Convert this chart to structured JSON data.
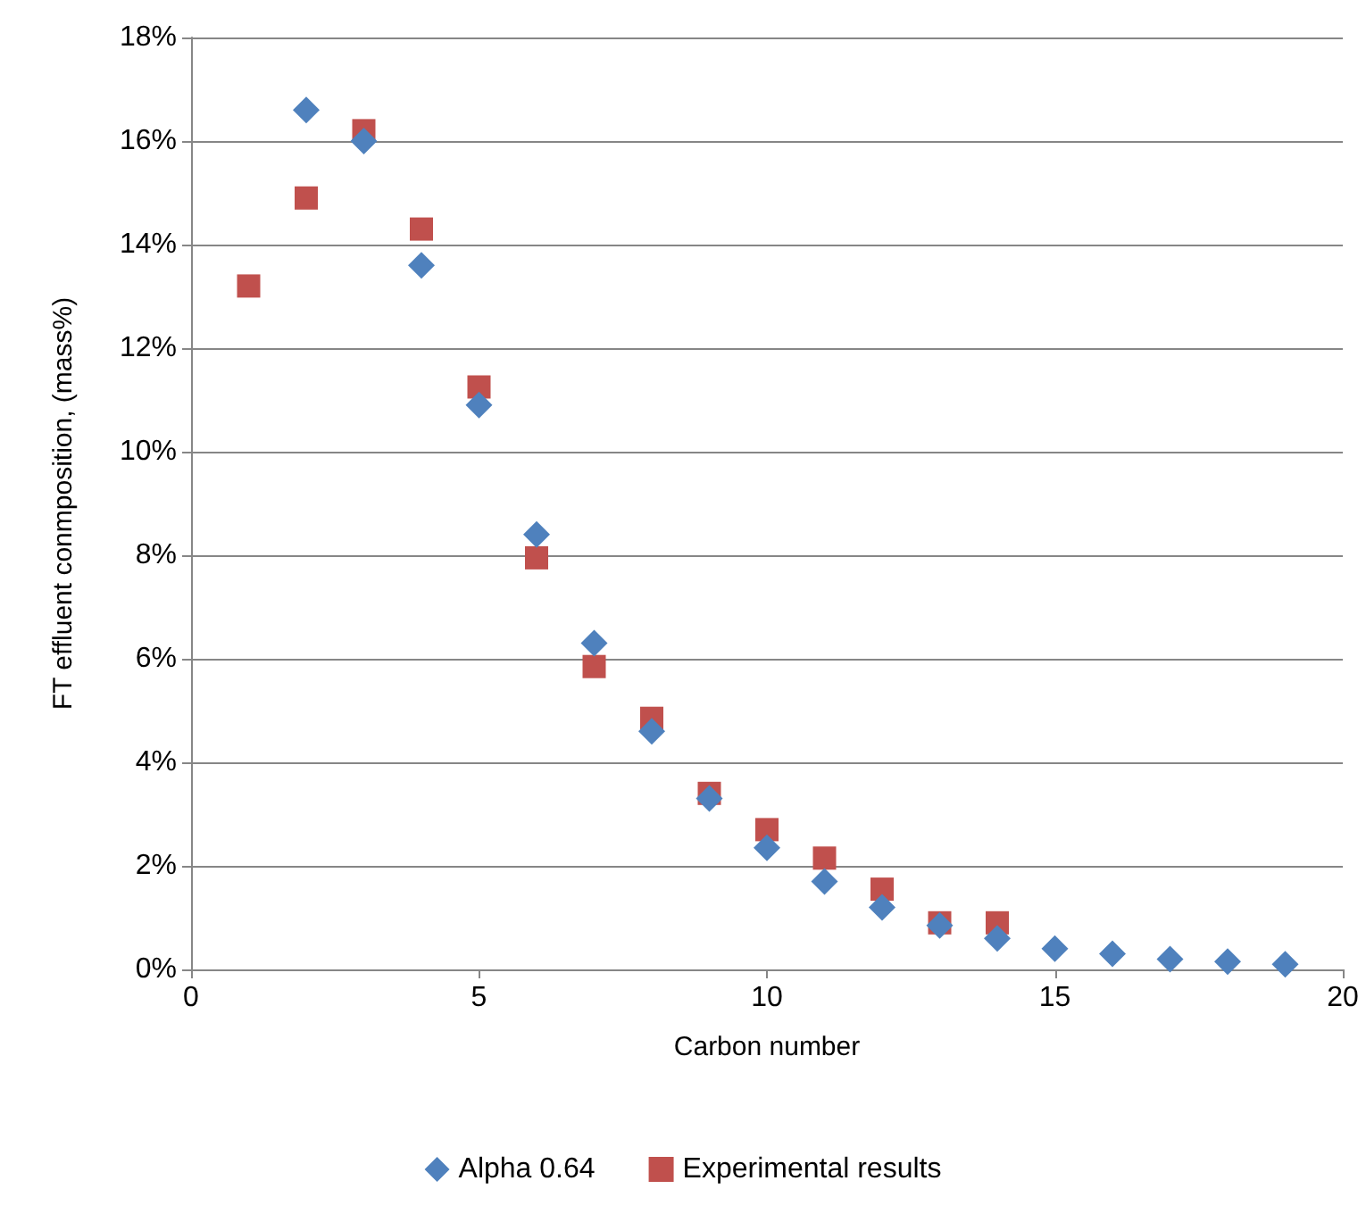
{
  "chart_data": {
    "type": "scatter",
    "xlabel": "Carbon number",
    "ylabel": "FT effluent conmposition, (mass%)",
    "xlim": [
      0,
      20
    ],
    "xticks": [
      0,
      5,
      10,
      15,
      20
    ],
    "ylim": [
      0,
      18
    ],
    "yticks": [
      {
        "value": 0,
        "label": "0%"
      },
      {
        "value": 2,
        "label": "2%"
      },
      {
        "value": 4,
        "label": "4%"
      },
      {
        "value": 6,
        "label": "6%"
      },
      {
        "value": 8,
        "label": "8%"
      },
      {
        "value": 10,
        "label": "10%"
      },
      {
        "value": 12,
        "label": "12%"
      },
      {
        "value": 14,
        "label": "14%"
      },
      {
        "value": 16,
        "label": "16%"
      },
      {
        "value": 18,
        "label": "18%"
      }
    ],
    "grid": "y",
    "legend": "bottom",
    "series": [
      {
        "name": "Alpha 0.64",
        "color": "#4f81bd",
        "marker": "diamond",
        "x": [
          2,
          3,
          4,
          5,
          6,
          7,
          8,
          9,
          10,
          11,
          12,
          13,
          14,
          15,
          16,
          17,
          18,
          19
        ],
        "values": [
          16.6,
          16.0,
          13.6,
          10.9,
          8.4,
          6.3,
          4.6,
          3.3,
          2.35,
          1.7,
          1.2,
          0.85,
          0.6,
          0.4,
          0.3,
          0.2,
          0.15,
          0.1
        ]
      },
      {
        "name": "Experimental results",
        "color": "#c0504d",
        "marker": "square",
        "x": [
          1,
          2,
          3,
          4,
          5,
          6,
          7,
          8,
          9,
          10,
          11,
          12,
          13,
          14
        ],
        "values": [
          13.2,
          14.9,
          16.2,
          14.3,
          11.25,
          7.95,
          5.85,
          4.85,
          3.4,
          2.7,
          2.15,
          1.55,
          0.9,
          0.9
        ]
      }
    ]
  }
}
